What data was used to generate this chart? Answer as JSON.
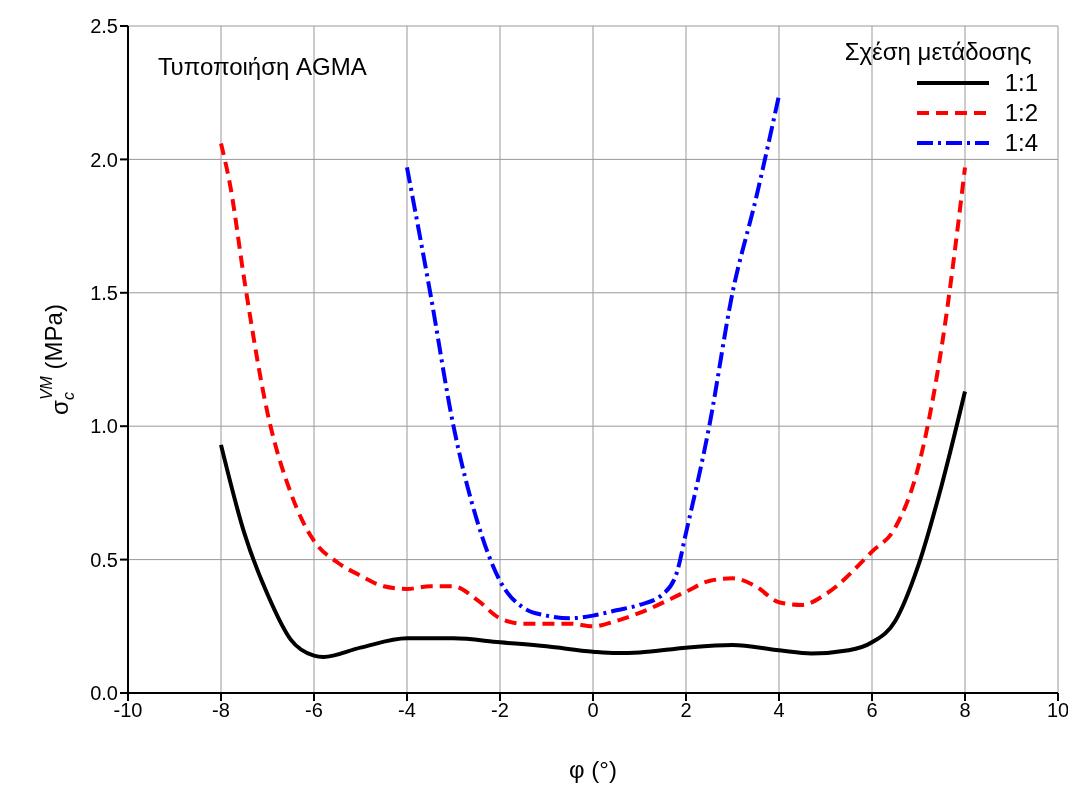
{
  "chart_data": {
    "type": "line",
    "xlabel": "φ (°)",
    "ylabel": "σ$_{c}$$^{VM}$ (MPa)",
    "legend_title": "Σχέση μετάδοσης",
    "annotations": [
      "Τυποποιήση AGMA"
    ],
    "xlim": [
      -10,
      10
    ],
    "xticks": [
      -10,
      -8,
      -6,
      -4,
      -2,
      0,
      2,
      4,
      6,
      8,
      10
    ],
    "ylim": [
      0,
      2.5
    ],
    "yticks": [
      {
        "value": 0,
        "label": "0.0"
      },
      {
        "value": 0.5,
        "label": "0.5"
      },
      {
        "value": 1,
        "label": "1.0"
      },
      {
        "value": 1.5,
        "label": "1.5"
      },
      {
        "value": 2,
        "label": "2.0"
      },
      {
        "value": 2.5,
        "label": "2.5"
      }
    ],
    "grid": true,
    "legend": "top right",
    "marker": "none",
    "series": [
      {
        "name": "1:1",
        "color": "#000000",
        "line_style": "solid",
        "x": [
          -8,
          -7.5,
          -7,
          -6.5,
          -6,
          -5.8,
          -5,
          -4,
          -3,
          -2,
          -1,
          0,
          0.5,
          1,
          2,
          3,
          4,
          4.7,
          5.5,
          6,
          6.5,
          7,
          7.5,
          8
        ],
        "values": [
          0.93,
          0.6,
          0.37,
          0.2,
          0.14,
          0.135,
          0.17,
          0.205,
          0.205,
          0.19,
          0.175,
          0.155,
          0.15,
          0.152,
          0.17,
          0.18,
          0.16,
          0.148,
          0.16,
          0.19,
          0.27,
          0.48,
          0.78,
          1.13
        ]
      },
      {
        "name": "1:2",
        "color": "#ff0000",
        "line_style": "dashed",
        "x": [
          -8,
          -7.8,
          -7.5,
          -7,
          -6.5,
          -6,
          -5.5,
          -5,
          -4.5,
          -4,
          -3.5,
          -3,
          -2.5,
          -2,
          -1.5,
          -1,
          -0.5,
          0,
          0.5,
          1,
          2,
          2.5,
          3,
          3.5,
          4,
          4.5,
          5,
          6,
          6.5,
          7,
          7.5,
          8
        ],
        "values": [
          2.06,
          1.9,
          1.55,
          1.05,
          0.75,
          0.57,
          0.49,
          0.44,
          0.4,
          0.39,
          0.4,
          0.4,
          0.35,
          0.28,
          0.26,
          0.26,
          0.26,
          0.25,
          0.27,
          0.3,
          0.38,
          0.42,
          0.43,
          0.4,
          0.34,
          0.33,
          0.37,
          0.53,
          0.62,
          0.85,
          1.3,
          1.97
        ]
      },
      {
        "name": "1:4",
        "color": "#0000ff",
        "line_style": "dashdot",
        "x": [
          -4,
          -3.5,
          -3,
          -2.5,
          -2,
          -1.5,
          -1,
          -0.5,
          0,
          0.5,
          1,
          1.5,
          1.8,
          2,
          2.5,
          3,
          3.5,
          4
        ],
        "values": [
          1.97,
          1.5,
          1.0,
          0.65,
          0.42,
          0.32,
          0.29,
          0.28,
          0.29,
          0.31,
          0.33,
          0.37,
          0.45,
          0.6,
          1.0,
          1.5,
          1.85,
          2.24
        ]
      }
    ]
  }
}
